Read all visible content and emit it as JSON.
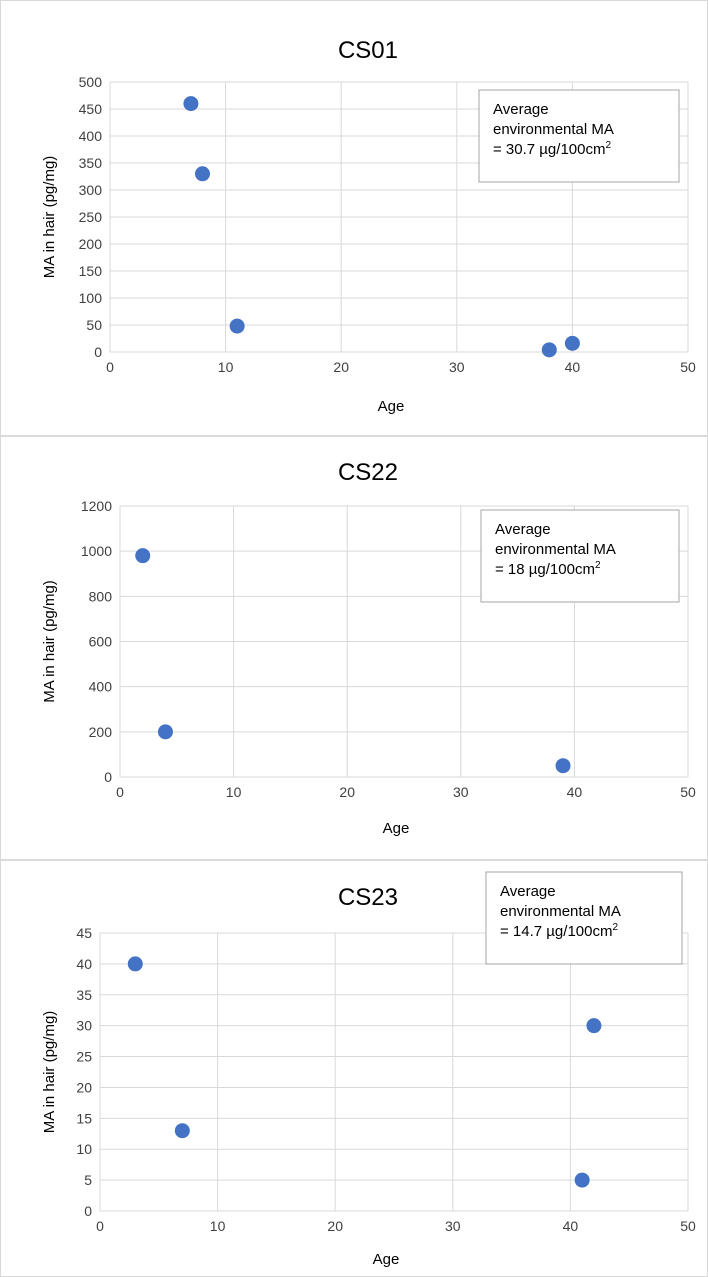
{
  "chart_data": [
    {
      "type": "scatter",
      "title": "CS01",
      "xlabel": "Age",
      "ylabel": "MA in hair (pg/mg)",
      "xlim": [
        0,
        50
      ],
      "ylim": [
        0,
        500
      ],
      "xticks": [
        0,
        10,
        20,
        30,
        40,
        50
      ],
      "yticks": [
        0,
        50,
        100,
        150,
        200,
        250,
        300,
        350,
        400,
        450,
        500
      ],
      "grid": true,
      "color": "#4472C4",
      "points": [
        {
          "x": 7,
          "y": 460
        },
        {
          "x": 8,
          "y": 330
        },
        {
          "x": 11,
          "y": 48
        },
        {
          "x": 38,
          "y": 4
        },
        {
          "x": 40,
          "y": 16
        }
      ],
      "annotation": {
        "line1": "Average",
        "line2": "environmental  MA",
        "line3": "= 30.7 µg/100cm",
        "sup": "2",
        "placement": "top-right"
      }
    },
    {
      "type": "scatter",
      "title": "CS22",
      "xlabel": "Age",
      "ylabel": "MA in hair (pg/mg)",
      "xlim": [
        0,
        50
      ],
      "ylim": [
        0,
        1200
      ],
      "xticks": [
        0,
        10,
        20,
        30,
        40,
        50
      ],
      "yticks": [
        0,
        200,
        400,
        600,
        800,
        1000,
        1200
      ],
      "grid": true,
      "color": "#4472C4",
      "points": [
        {
          "x": 2,
          "y": 980
        },
        {
          "x": 4,
          "y": 200
        },
        {
          "x": 39,
          "y": 50
        }
      ],
      "annotation": {
        "line1": "Average",
        "line2": "environmental  MA",
        "line3": "= 18 µg/100cm",
        "sup": "2",
        "placement": "top-right"
      }
    },
    {
      "type": "scatter",
      "title": "CS23",
      "xlabel": "Age",
      "ylabel": "MA in hair (pg/mg)",
      "xlim": [
        0,
        50
      ],
      "ylim": [
        0,
        45
      ],
      "xticks": [
        0,
        10,
        20,
        30,
        40,
        50
      ],
      "yticks": [
        0,
        5,
        10,
        15,
        20,
        25,
        30,
        35,
        40,
        45
      ],
      "grid": true,
      "color": "#4472C4",
      "points": [
        {
          "x": 3,
          "y": 40
        },
        {
          "x": 7,
          "y": 13
        },
        {
          "x": 41,
          "y": 5
        },
        {
          "x": 42,
          "y": 30
        }
      ],
      "annotation": {
        "line1": "Average",
        "line2": "environmental  MA",
        "line3": "= 14.7 µg/100cm",
        "sup": "2",
        "placement": "top-right"
      }
    }
  ]
}
